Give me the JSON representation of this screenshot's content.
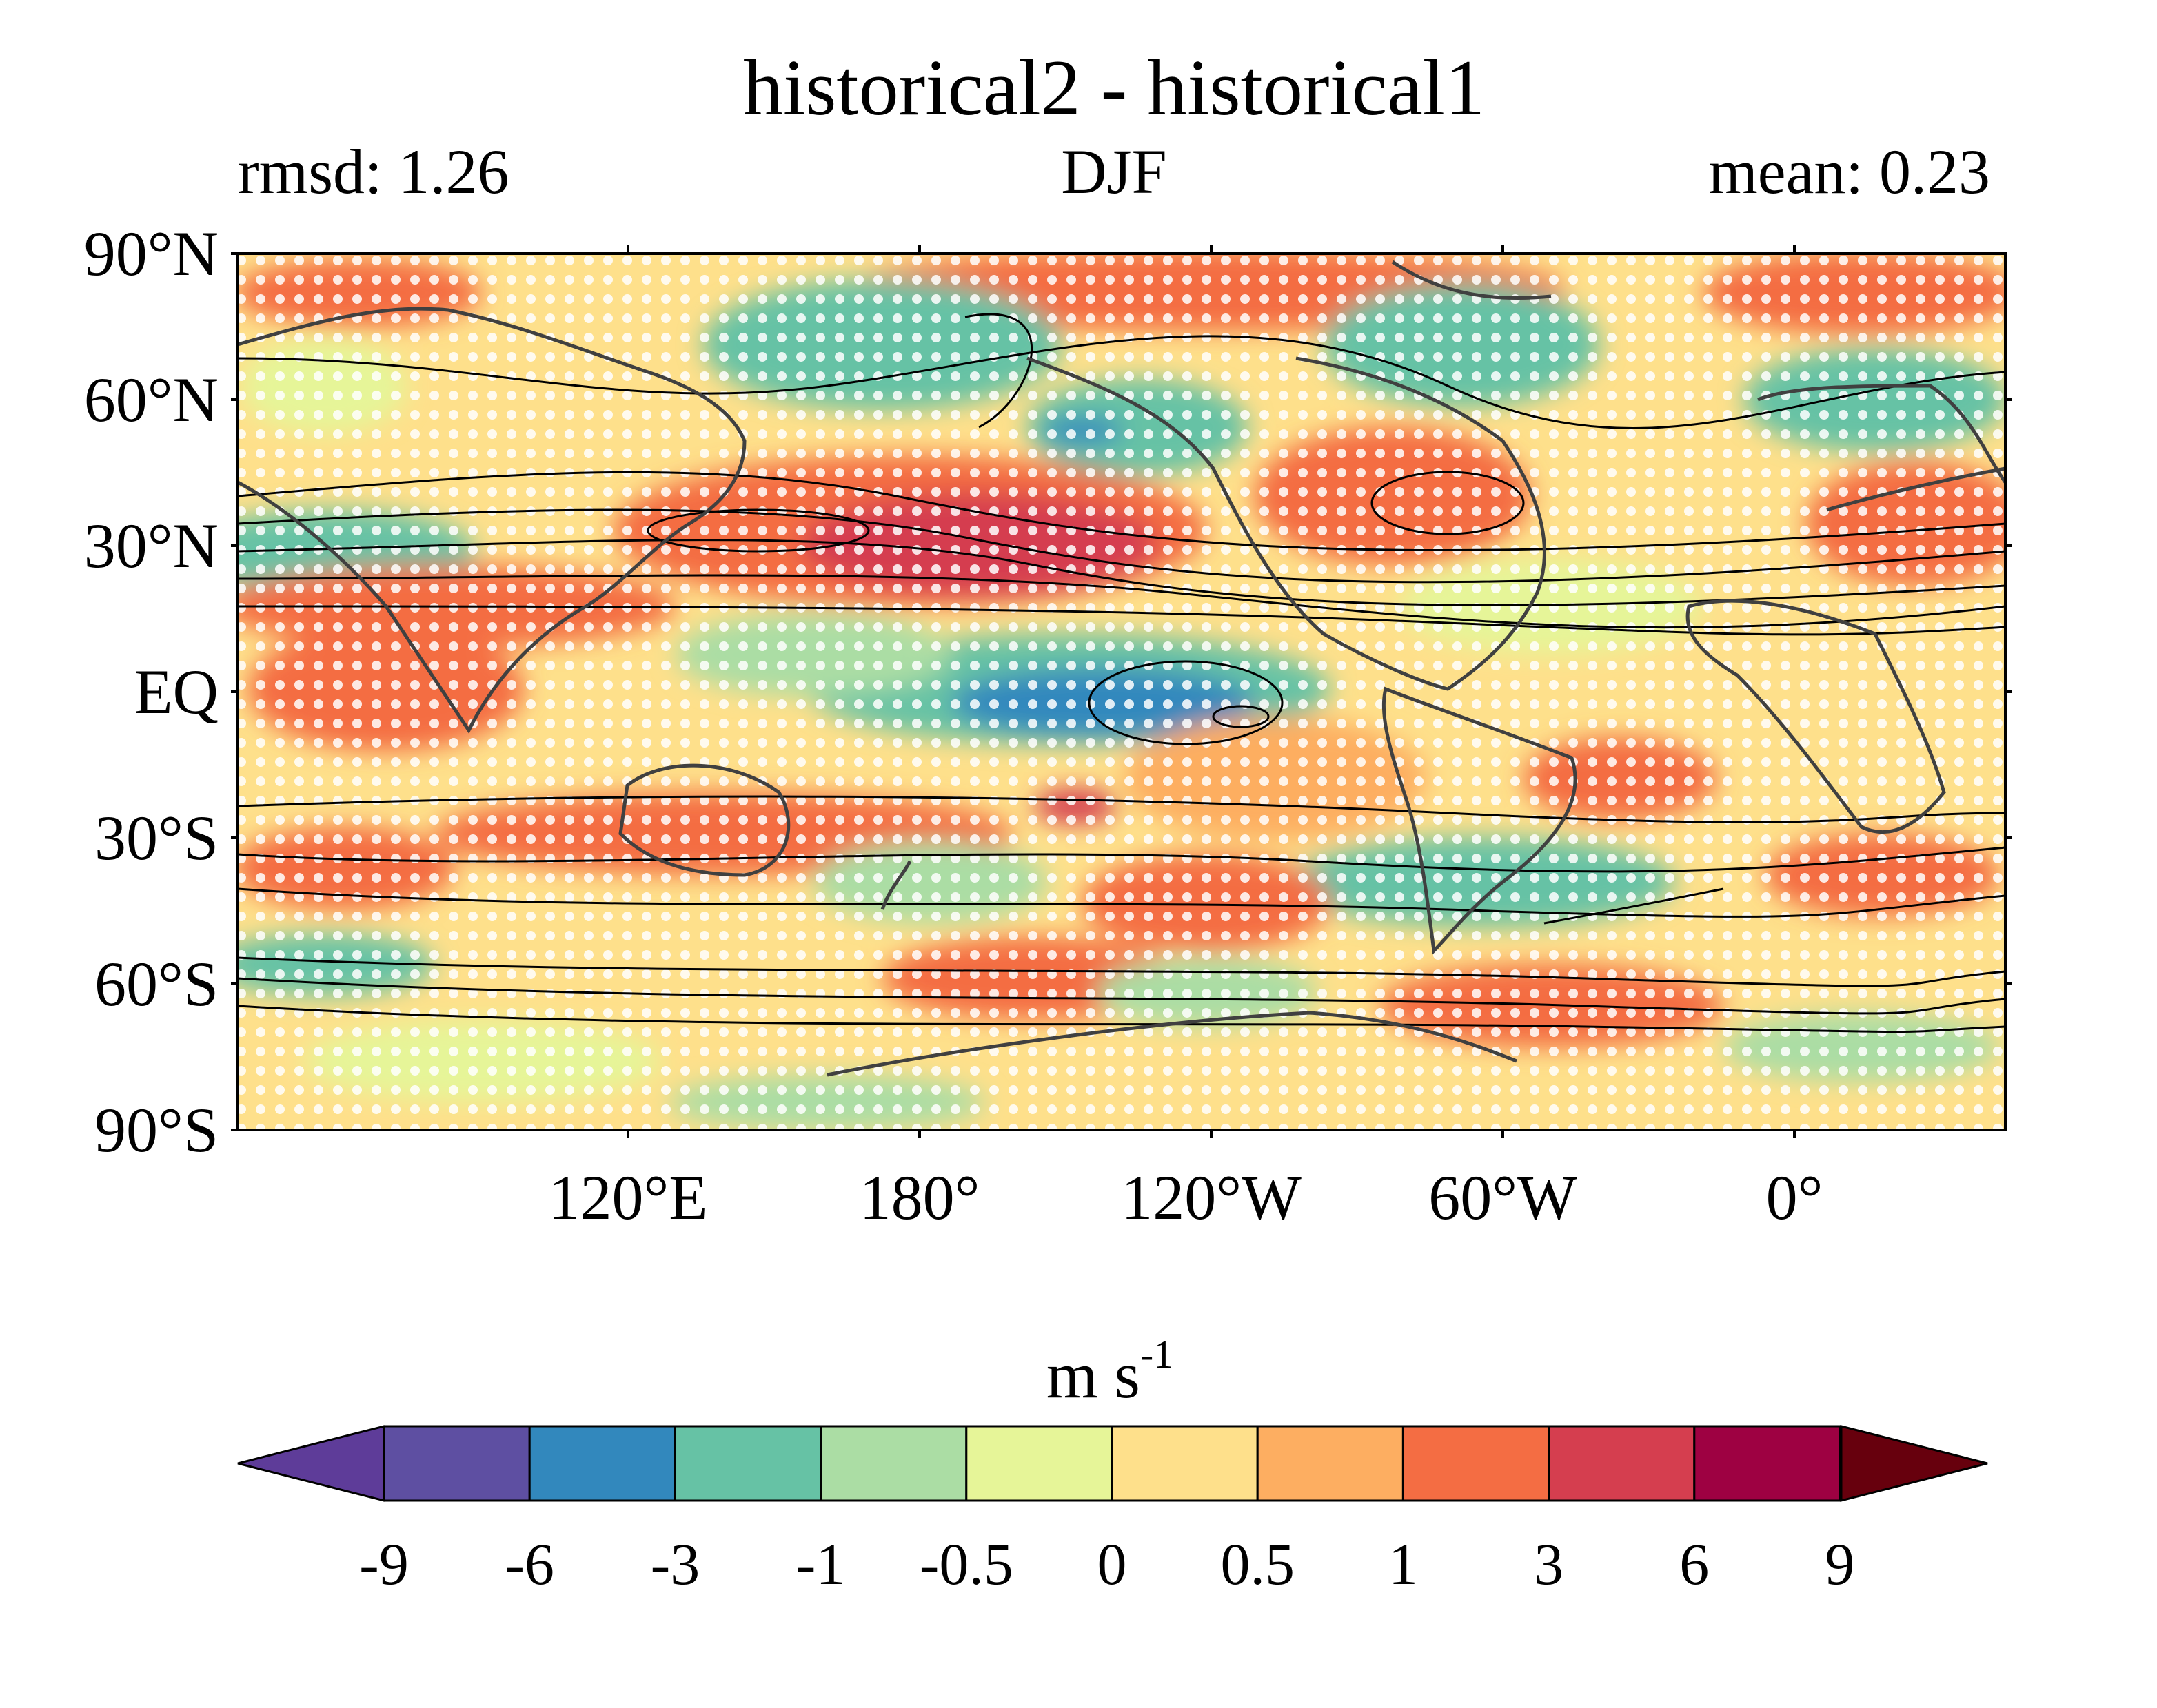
{
  "chart_data": {
    "type": "heatmap",
    "title": "historical2 - historical1",
    "left_annotation": "rmsd: 1.26",
    "center_annotation": "DJF",
    "right_annotation": "mean: 0.23",
    "y_ticks": [
      "90°N",
      "60°N",
      "30°N",
      "EQ",
      "30°S",
      "60°S",
      "90°S"
    ],
    "y_tick_values": [
      90,
      60,
      30,
      0,
      -30,
      -60,
      -90
    ],
    "x_ticks": [
      "120°E",
      "180°",
      "120°W",
      "60°W",
      "0°"
    ],
    "x_tick_values": [
      120,
      180,
      240,
      300,
      360
    ],
    "xlim": [
      40,
      402
    ],
    "ylim": [
      -90,
      90
    ],
    "colorbar": {
      "label": "m s",
      "label_exponent": "-1",
      "levels": [
        "-9",
        "-6",
        "-3",
        "-1",
        "-0.5",
        "0",
        "0.5",
        "1",
        "3",
        "6",
        "9"
      ],
      "colors": [
        "#5e3c99",
        "#5e4fa2",
        "#3288bd",
        "#66c2a5",
        "#abdda4",
        "#e6f598",
        "#fee08b",
        "#fdae61",
        "#f46d43",
        "#d53e4f",
        "#9e0142",
        "#67000d"
      ],
      "extend": "both"
    },
    "overlays": [
      "black contour lines (climatology)",
      "white stippling (significance)",
      "coastlines"
    ]
  }
}
